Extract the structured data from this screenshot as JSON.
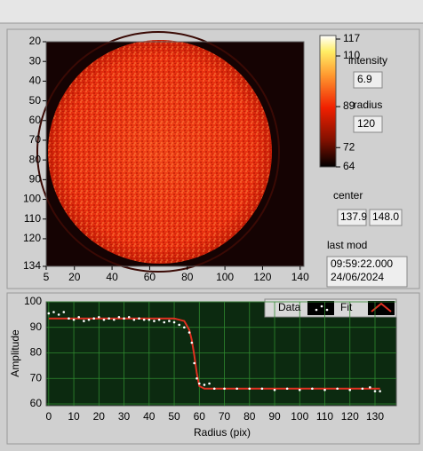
{
  "image_axes": {
    "xlim": [
      5,
      142
    ],
    "ylim": [
      20,
      134
    ],
    "xticks": [
      5,
      20,
      40,
      60,
      80,
      100,
      120,
      140
    ],
    "yticks": [
      20,
      30,
      40,
      50,
      60,
      70,
      80,
      90,
      100,
      110,
      120,
      134
    ]
  },
  "colorbar": {
    "lim": [
      64,
      117
    ],
    "ticks": [
      117,
      110,
      89,
      72,
      64
    ]
  },
  "indicators": {
    "intensity": {
      "label": "intensity",
      "value": "6.9"
    },
    "radius": {
      "label": "radius",
      "value": "120"
    },
    "center": {
      "label": "center",
      "x": "137.9",
      "y": "148.0"
    },
    "last_mod": {
      "label": "last mod",
      "time": "09:59:22.000",
      "date": "24/06/2024"
    }
  },
  "chart_data": {
    "type": "scatter_fit",
    "x_label": "Radius (pix)",
    "y_label": "Amplitude",
    "xlim": [
      -1,
      138.5
    ],
    "ylim": [
      60,
      100
    ],
    "xticks": [
      0,
      10,
      20,
      30,
      40,
      50,
      60,
      70,
      80,
      90,
      100,
      110,
      120,
      130
    ],
    "yticks": [
      60,
      70,
      80,
      90,
      100
    ],
    "grid": true,
    "series": [
      {
        "name": "Data",
        "color": "#ffffff",
        "x": [
          0,
          2,
          4,
          6,
          8,
          10,
          12,
          14,
          16,
          18,
          20,
          22,
          24,
          26,
          28,
          30,
          32,
          34,
          36,
          38,
          40,
          42,
          44,
          46,
          48,
          50,
          52,
          54,
          56,
          57,
          58,
          59,
          60,
          62,
          64,
          66,
          70,
          75,
          80,
          85,
          90,
          95,
          100,
          105,
          110,
          115,
          120,
          125,
          128,
          130,
          132
        ],
        "values": [
          95.5,
          96,
          95,
          96,
          93.5,
          93,
          94,
          92.5,
          93,
          93.5,
          94,
          93,
          93.5,
          93,
          94,
          93.5,
          94,
          93,
          93.5,
          93,
          93,
          92.5,
          93,
          92,
          92.5,
          92,
          91,
          90,
          88,
          84,
          76,
          70,
          68,
          67.5,
          68,
          66,
          66,
          66,
          66,
          66,
          65.5,
          66,
          65.5,
          66,
          65.5,
          66,
          65.5,
          66,
          66.5,
          65,
          65
        ]
      },
      {
        "name": "Fit",
        "color": "#e03020",
        "x": [
          0,
          50,
          54,
          56,
          57,
          58,
          59,
          60,
          62,
          132
        ],
        "values": [
          93.5,
          93.5,
          92.5,
          89,
          85,
          79,
          72,
          67,
          66,
          66
        ]
      }
    ]
  }
}
